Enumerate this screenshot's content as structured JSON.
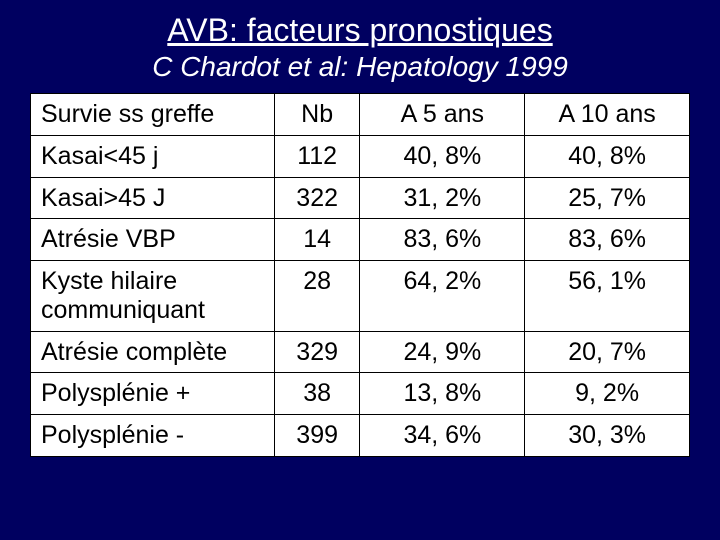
{
  "title": "AVB: facteurs pronostiques",
  "subtitle": "C Chardot et al: Hepatology 1999",
  "table": {
    "type": "table",
    "background_color": "#ffffff",
    "border_color": "#000000",
    "text_color": "#000000",
    "font_size": 25,
    "columns": [
      {
        "key": "label",
        "align": "left",
        "width": "37%"
      },
      {
        "key": "nb",
        "align": "center",
        "width": "13%"
      },
      {
        "key": "a5",
        "align": "center",
        "width": "25%"
      },
      {
        "key": "a10",
        "align": "center",
        "width": "25%"
      }
    ],
    "header": {
      "label": "Survie ss greffe",
      "nb": "Nb",
      "a5": "A 5 ans",
      "a10": "A 10 ans"
    },
    "rows": [
      {
        "label": "Kasai<45 j",
        "nb": "112",
        "a5": "40, 8%",
        "a10": "40, 8%"
      },
      {
        "label": "Kasai>45 J",
        "nb": "322",
        "a5": "31, 2%",
        "a10": "25, 7%"
      },
      {
        "label": "Atrésie VBP",
        "nb": "14",
        "a5": "83, 6%",
        "a10": "83, 6%"
      },
      {
        "label": "Kyste hilaire communiquant",
        "nb": "28",
        "a5": "64, 2%",
        "a10": "56, 1%"
      },
      {
        "label": "Atrésie complète",
        "nb": "329",
        "a5": "24, 9%",
        "a10": "20, 7%"
      },
      {
        "label": "Polysplénie +",
        "nb": "38",
        "a5": "13, 8%",
        "a10": "9, 2%"
      },
      {
        "label": "Polysplénie -",
        "nb": "399",
        "a5": "34, 6%",
        "a10": "30, 3%"
      }
    ]
  },
  "page_background": "#000060",
  "title_color": "#ffffff",
  "title_fontsize": 32,
  "subtitle_fontsize": 28
}
